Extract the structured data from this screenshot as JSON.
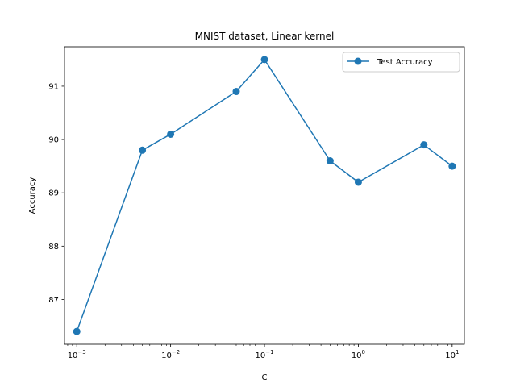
{
  "chart_data": {
    "type": "line",
    "title": "MNIST dataset, Linear kernel",
    "xlabel": "C",
    "ylabel": "Accuracy",
    "xscale": "log",
    "xlim": [
      0.00074,
      13.5
    ],
    "ylim": [
      86.16,
      91.74
    ],
    "xticks": [
      {
        "value": 0.001,
        "base": "10",
        "exp": "−3"
      },
      {
        "value": 0.01,
        "base": "10",
        "exp": "−2"
      },
      {
        "value": 0.1,
        "base": "10",
        "exp": "−1"
      },
      {
        "value": 1,
        "base": "10",
        "exp": "0"
      },
      {
        "value": 10,
        "base": "10",
        "exp": "1"
      }
    ],
    "yticks": [
      87,
      88,
      89,
      90,
      91
    ],
    "legend_position": "top-right",
    "grid": false,
    "series": [
      {
        "name": "Test Accuracy",
        "color": "#1f77b4",
        "marker": "circle",
        "x": [
          0.001,
          0.005,
          0.01,
          0.05,
          0.1,
          0.5,
          1,
          5,
          10
        ],
        "y": [
          86.4,
          89.8,
          90.1,
          90.9,
          91.5,
          89.6,
          89.2,
          89.9,
          89.5
        ]
      }
    ]
  }
}
